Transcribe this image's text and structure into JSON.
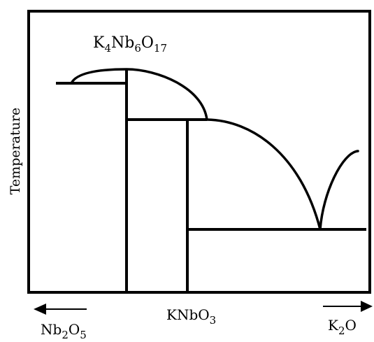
{
  "y_axis_label": "Temperature",
  "compound_label": {
    "prefix": "K",
    "s1": "4",
    "mid1": "Nb",
    "s2": "6",
    "mid2": "O",
    "s3": "17"
  },
  "middle_label": {
    "prefix": "KNbO",
    "s1": "3"
  },
  "left_end_label": {
    "prefix": "Nb",
    "s1": "2",
    "mid1": "O",
    "s2": "5"
  },
  "right_end_label": {
    "prefix": "K",
    "s1": "2",
    "mid1": "O"
  },
  "line_color": "#000000"
}
